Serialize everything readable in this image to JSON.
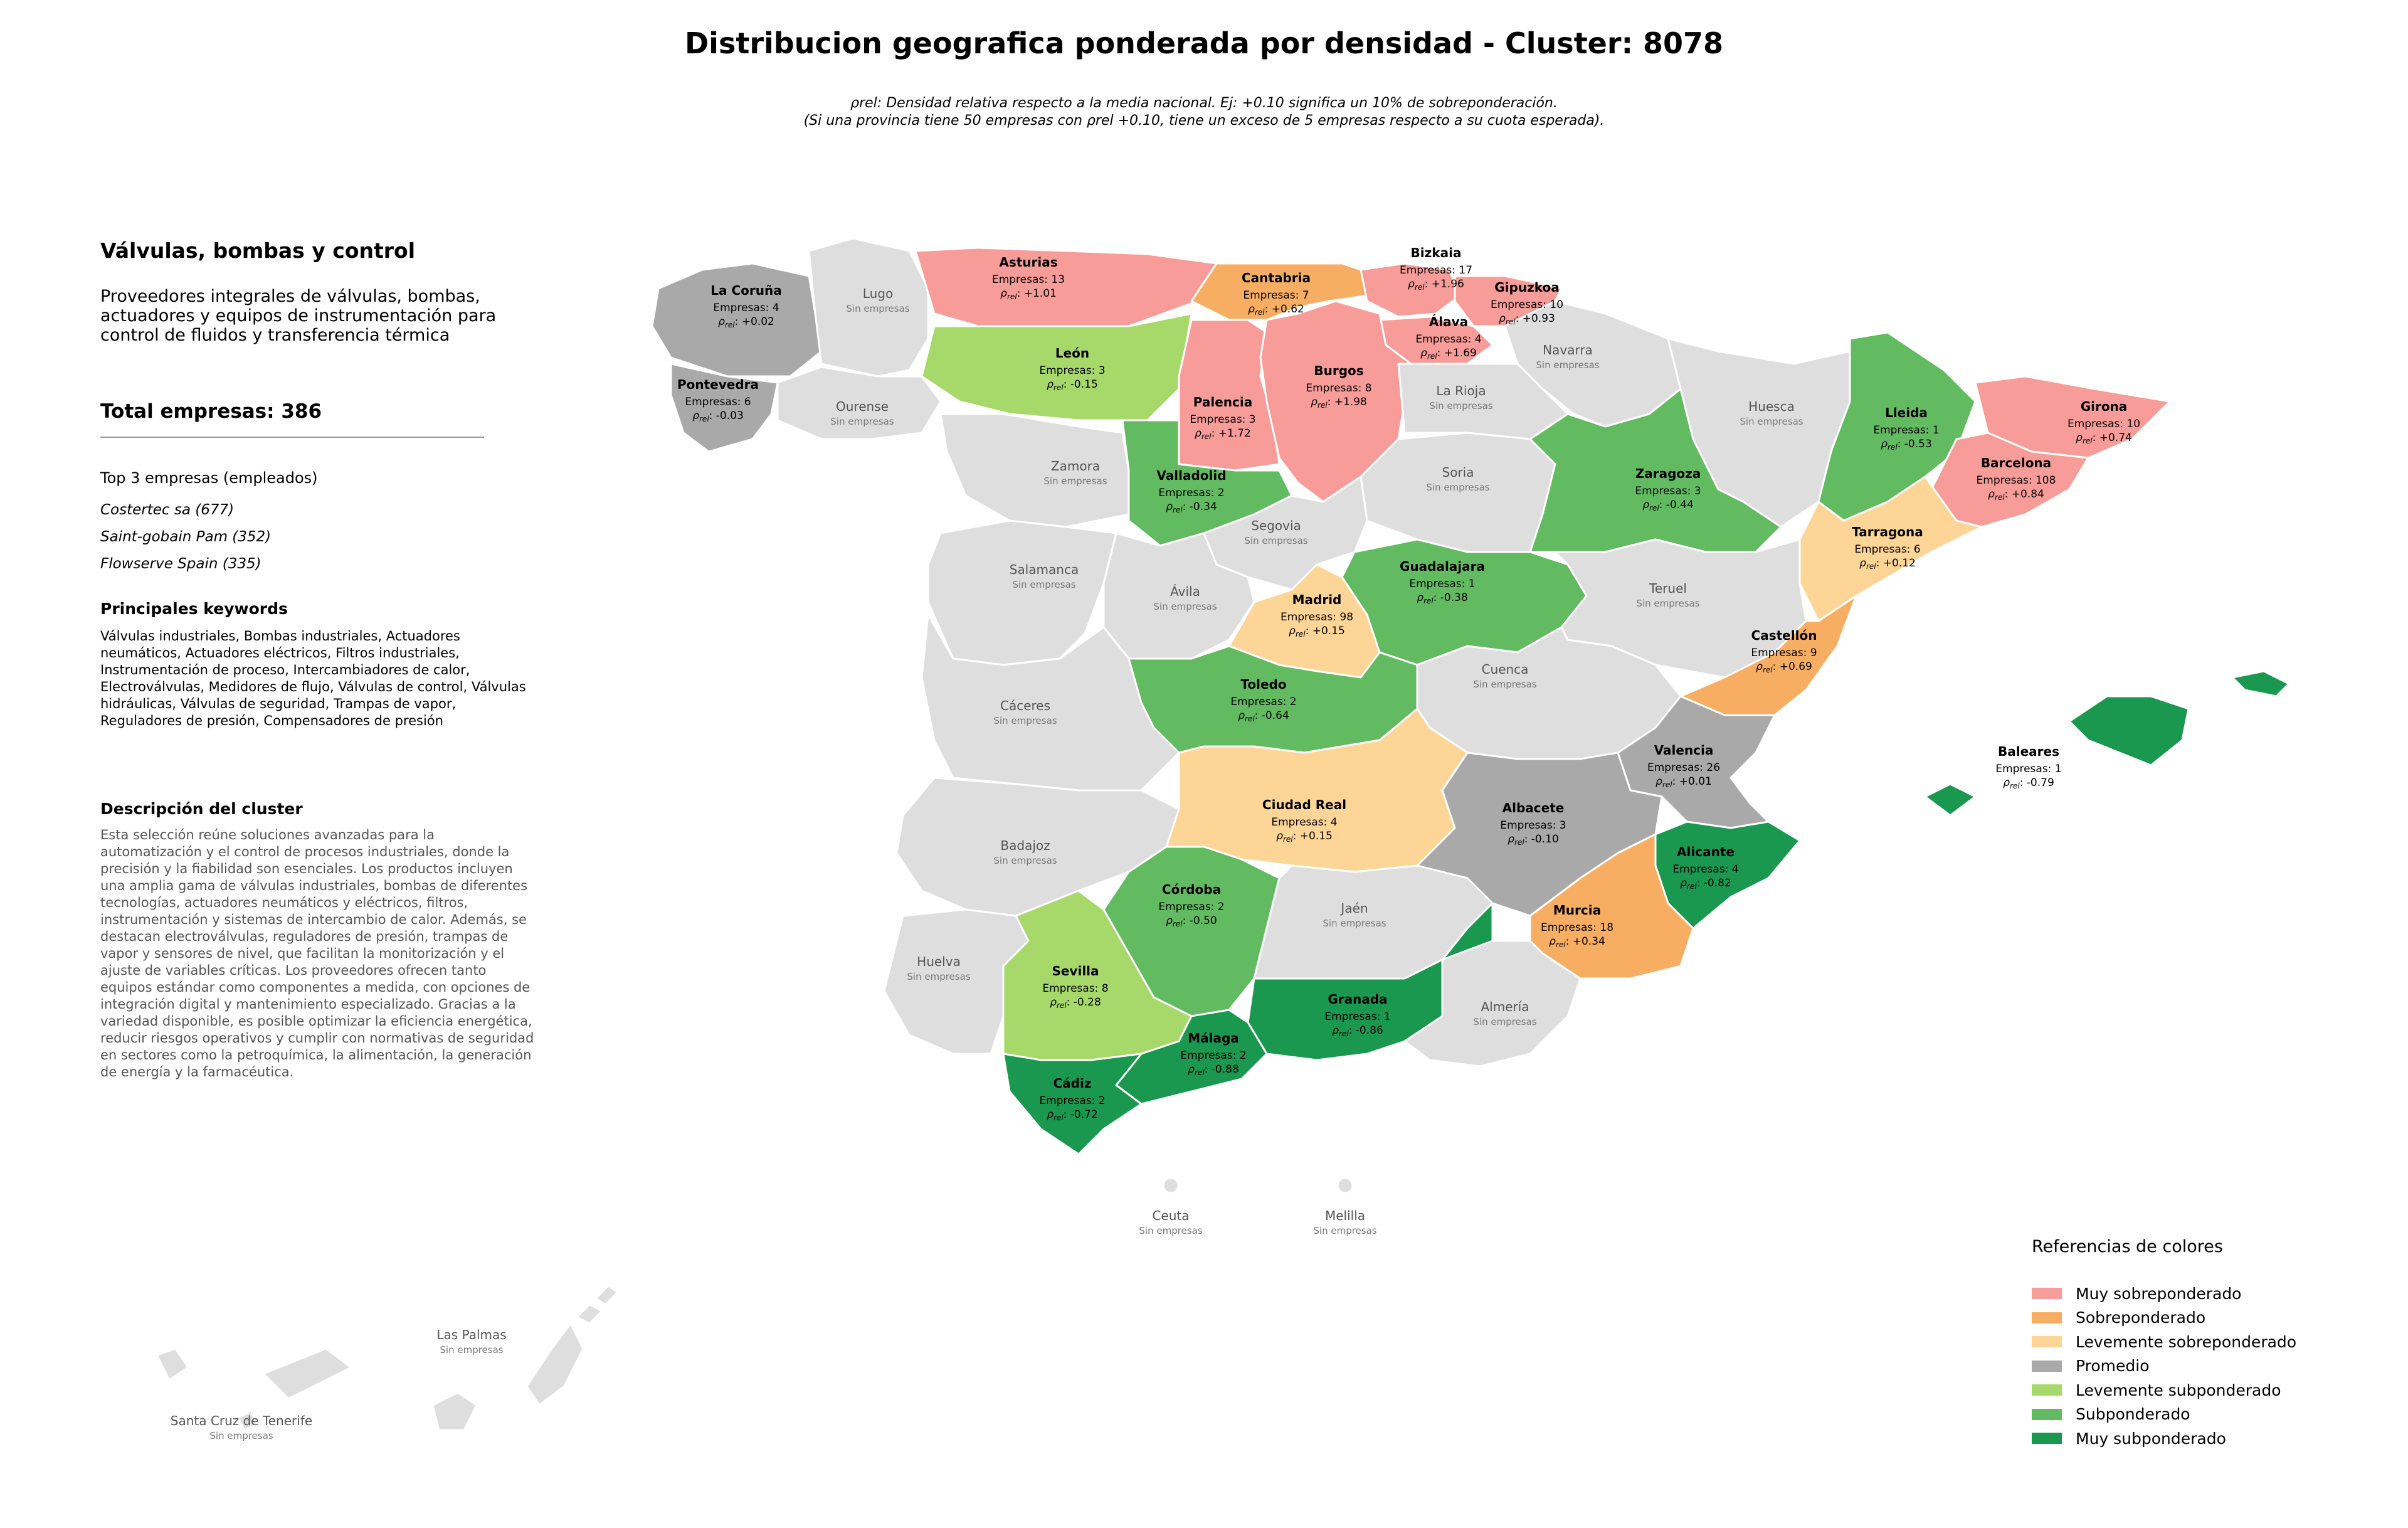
{
  "title": "Distribucion geografica ponderada por densidad - Cluster: 8078",
  "subtitle_line1": "ρrel: Densidad relativa respecto a la media nacional. Ej: +0.10 significa un 10% de sobreponderación.",
  "subtitle_line2": "(Si una provincia tiene 50 empresas con ρrel +0.10, tiene un exceso de 5 empresas respecto a su cuota esperada).",
  "panel": {
    "heading": "Válvulas, bombas y control",
    "description": "Proveedores integrales de válvulas, bombas, actuadores y equipos de instrumentación para control de fluidos y transferencia térmica",
    "total": "Total empresas: 386",
    "top3_title": "Top 3 empresas (empleados)",
    "top3": [
      "Costertec sa (677)",
      "Saint-gobain Pam (352)",
      "Flowserve Spain (335)"
    ],
    "keywords_title": "Principales keywords",
    "keywords": "Válvulas industriales, Bombas industriales, Actuadores neumáticos, Actuadores eléctricos, Filtros industriales, Instrumentación de proceso, Intercambiadores de calor, Electroválvulas, Medidores de flujo, Válvulas de control, Válvulas hidráulicas, Válvulas de seguridad, Trampas de vapor, Reguladores de presión, Compensadores de presión",
    "cluster_title": "Descripción del cluster",
    "cluster_text": "Esta selección reúne soluciones avanzadas para la automatización y el control de procesos industriales, donde la precisión y la fiabilidad son esenciales. Los productos incluyen una amplia gama de válvulas industriales, bombas de diferentes tecnologías, actuadores neumáticos y eléctricos, filtros, instrumentación y sistemas de intercambio de calor. Además, se destacan electroválvulas, reguladores de presión, trampas de vapor y sensores de nivel, que facilitan la monitorización y el ajuste de variables críticas. Los proveedores ofrecen tanto equipos estándar como componentes a medida, con opciones de integración digital y mantenimiento especializado. Gracias a la variedad disponible, es posible optimizar la eficiencia energética, reducir riesgos operativos y cumplir con normativas de seguridad en sectores como la petroquímica, la alimentación, la generación de energía y la farmacéutica."
  },
  "empty_label": "Sin empresas",
  "colors": {
    "muy_sobre": "#f79c98",
    "sobre": "#f8ae62",
    "lev_sobre": "#fdd597",
    "promedio": "#a9a9a9",
    "lev_sub": "#a6d96a",
    "sub": "#63bb61",
    "muy_sub": "#1a9850",
    "sin": "#dedede"
  },
  "legend": {
    "title": "Referencias de colores",
    "items": [
      {
        "label": "Muy sobreponderado",
        "color": "#f79c98"
      },
      {
        "label": "Sobreponderado",
        "color": "#f8ae62"
      },
      {
        "label": "Levemente sobreponderado",
        "color": "#fdd597"
      },
      {
        "label": "Promedio",
        "color": "#a9a9a9"
      },
      {
        "label": "Levemente subponderado",
        "color": "#a6d96a"
      },
      {
        "label": "Subponderado",
        "color": "#63bb61"
      },
      {
        "label": "Muy subponderado",
        "color": "#1a9850"
      }
    ]
  },
  "provinces": [
    {
      "id": "la-coruna",
      "name": "La Coruña",
      "empresas": "Empresas: 4",
      "rho": "+0.02",
      "cat": "promedio"
    },
    {
      "id": "lugo",
      "name": "Lugo",
      "cat": "sin"
    },
    {
      "id": "asturias",
      "name": "Asturias",
      "empresas": "Empresas: 13",
      "rho": "+1.01",
      "cat": "muy_sobre"
    },
    {
      "id": "cantabria",
      "name": "Cantabria",
      "empresas": "Empresas: 7",
      "rho": "+0.62",
      "cat": "sobre"
    },
    {
      "id": "bizkaia",
      "name": "Bizkaia",
      "empresas": "Empresas: 17",
      "rho": "+1.96",
      "cat": "muy_sobre"
    },
    {
      "id": "gipuzkoa",
      "name": "Gipuzkoa",
      "empresas": "Empresas: 10",
      "rho": "+0.93",
      "cat": "muy_sobre"
    },
    {
      "id": "alava",
      "name": "Álava",
      "empresas": "Empresas: 4",
      "rho": "+1.69",
      "cat": "muy_sobre"
    },
    {
      "id": "navarra",
      "name": "Navarra",
      "cat": "sin"
    },
    {
      "id": "pontevedra",
      "name": "Pontevedra",
      "empresas": "Empresas: 6",
      "rho": "-0.03",
      "cat": "promedio"
    },
    {
      "id": "ourense",
      "name": "Ourense",
      "cat": "sin"
    },
    {
      "id": "leon",
      "name": "León",
      "empresas": "Empresas: 3",
      "rho": "-0.15",
      "cat": "lev_sub"
    },
    {
      "id": "palencia",
      "name": "Palencia",
      "empresas": "Empresas: 3",
      "rho": "+1.72",
      "cat": "muy_sobre"
    },
    {
      "id": "burgos",
      "name": "Burgos",
      "empresas": "Empresas: 8",
      "rho": "+1.98",
      "cat": "muy_sobre"
    },
    {
      "id": "la-rioja",
      "name": "La Rioja",
      "cat": "sin"
    },
    {
      "id": "huesca",
      "name": "Huesca",
      "cat": "sin"
    },
    {
      "id": "lleida",
      "name": "Lleida",
      "empresas": "Empresas: 1",
      "rho": "-0.53",
      "cat": "sub"
    },
    {
      "id": "girona",
      "name": "Girona",
      "empresas": "Empresas: 10",
      "rho": "+0.74",
      "cat": "muy_sobre"
    },
    {
      "id": "barcelona",
      "name": "Barcelona",
      "empresas": "Empresas: 108",
      "rho": "+0.84",
      "cat": "muy_sobre"
    },
    {
      "id": "zamora",
      "name": "Zamora",
      "cat": "sin"
    },
    {
      "id": "valladolid",
      "name": "Valladolid",
      "empresas": "Empresas: 2",
      "rho": "-0.34",
      "cat": "sub"
    },
    {
      "id": "soria",
      "name": "Soria",
      "cat": "sin"
    },
    {
      "id": "zaragoza",
      "name": "Zaragoza",
      "empresas": "Empresas: 3",
      "rho": "-0.44",
      "cat": "sub"
    },
    {
      "id": "tarragona",
      "name": "Tarragona",
      "empresas": "Empresas: 6",
      "rho": "+0.12",
      "cat": "lev_sobre"
    },
    {
      "id": "salamanca",
      "name": "Salamanca",
      "cat": "sin"
    },
    {
      "id": "segovia",
      "name": "Segovia",
      "cat": "sin"
    },
    {
      "id": "avila",
      "name": "Ávila",
      "cat": "sin"
    },
    {
      "id": "madrid",
      "name": "Madrid",
      "empresas": "Empresas: 98",
      "rho": "+0.15",
      "cat": "lev_sobre"
    },
    {
      "id": "guadalajara",
      "name": "Guadalajara",
      "empresas": "Empresas: 1",
      "rho": "-0.38",
      "cat": "sub"
    },
    {
      "id": "teruel",
      "name": "Teruel",
      "cat": "sin"
    },
    {
      "id": "castellon",
      "name": "Castellón",
      "empresas": "Empresas: 9",
      "rho": "+0.69",
      "cat": "sobre"
    },
    {
      "id": "caceres",
      "name": "Cáceres",
      "cat": "sin"
    },
    {
      "id": "toledo",
      "name": "Toledo",
      "empresas": "Empresas: 2",
      "rho": "-0.64",
      "cat": "sub"
    },
    {
      "id": "cuenca",
      "name": "Cuenca",
      "cat": "sin"
    },
    {
      "id": "valencia",
      "name": "Valencia",
      "empresas": "Empresas: 26",
      "rho": "+0.01",
      "cat": "promedio"
    },
    {
      "id": "baleares",
      "name": "Baleares",
      "empresas": "Empresas: 1",
      "rho": "-0.79",
      "cat": "muy_sub"
    },
    {
      "id": "badajoz",
      "name": "Badajoz",
      "cat": "sin"
    },
    {
      "id": "ciudad-real",
      "name": "Ciudad Real",
      "empresas": "Empresas: 4",
      "rho": "+0.15",
      "cat": "lev_sobre"
    },
    {
      "id": "albacete",
      "name": "Albacete",
      "empresas": "Empresas: 3",
      "rho": "-0.10",
      "cat": "promedio"
    },
    {
      "id": "alicante",
      "name": "Alicante",
      "empresas": "Empresas: 4",
      "rho": "-0.82",
      "cat": "muy_sub"
    },
    {
      "id": "cordoba",
      "name": "Córdoba",
      "empresas": "Empresas: 2",
      "rho": "-0.50",
      "cat": "sub"
    },
    {
      "id": "jaen",
      "name": "Jaén",
      "cat": "sin"
    },
    {
      "id": "murcia",
      "name": "Murcia",
      "empresas": "Empresas: 18",
      "rho": "+0.34",
      "cat": "sobre"
    },
    {
      "id": "huelva",
      "name": "Huelva",
      "cat": "sin"
    },
    {
      "id": "sevilla",
      "name": "Sevilla",
      "empresas": "Empresas: 8",
      "rho": "-0.28",
      "cat": "lev_sub"
    },
    {
      "id": "granada",
      "name": "Granada",
      "empresas": "Empresas: 1",
      "rho": "-0.86",
      "cat": "muy_sub"
    },
    {
      "id": "almeria",
      "name": "Almería",
      "cat": "sin"
    },
    {
      "id": "malaga",
      "name": "Málaga",
      "empresas": "Empresas: 2",
      "rho": "-0.88",
      "cat": "muy_sub"
    },
    {
      "id": "cadiz",
      "name": "Cádiz",
      "empresas": "Empresas: 2",
      "rho": "-0.72",
      "cat": "muy_sub"
    },
    {
      "id": "ceuta",
      "name": "Ceuta",
      "cat": "sin"
    },
    {
      "id": "melilla",
      "name": "Melilla",
      "cat": "sin"
    },
    {
      "id": "las-palmas",
      "name": "Las Palmas",
      "cat": "sin"
    },
    {
      "id": "santa-cruz",
      "name": "Santa Cruz de Tenerife",
      "cat": "sin"
    }
  ]
}
